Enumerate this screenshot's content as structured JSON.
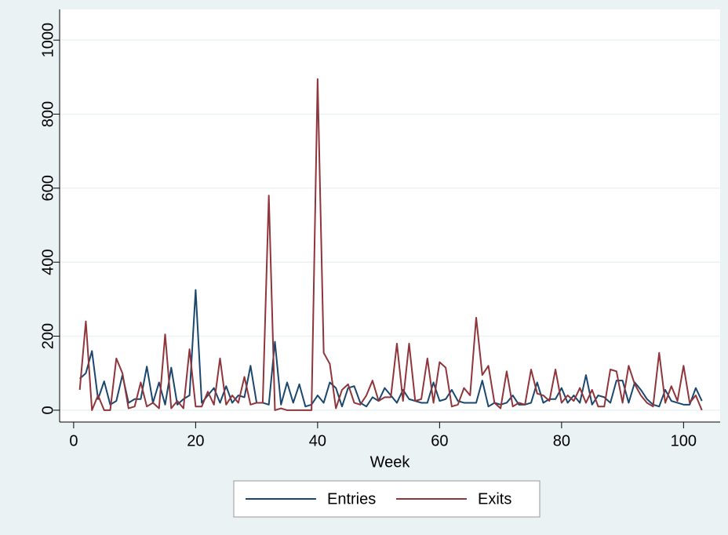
{
  "chart_data": {
    "type": "line",
    "x_label": "Week",
    "x": [
      1,
      2,
      3,
      4,
      5,
      6,
      7,
      8,
      9,
      10,
      11,
      12,
      13,
      14,
      15,
      16,
      17,
      18,
      19,
      20,
      21,
      22,
      23,
      24,
      25,
      26,
      27,
      28,
      29,
      30,
      31,
      32,
      33,
      34,
      35,
      36,
      37,
      38,
      39,
      40,
      41,
      42,
      43,
      44,
      45,
      46,
      47,
      48,
      49,
      50,
      51,
      52,
      53,
      54,
      55,
      56,
      57,
      58,
      59,
      60,
      61,
      62,
      63,
      64,
      65,
      66,
      67,
      68,
      69,
      70,
      71,
      72,
      73,
      74,
      75,
      76,
      77,
      78,
      79,
      80,
      81,
      82,
      83,
      84,
      85,
      86,
      87,
      88,
      89,
      90,
      91,
      92,
      93,
      94,
      95,
      96,
      97,
      98,
      99,
      100,
      101,
      102,
      103
    ],
    "series": [
      {
        "name": "Entries",
        "color": "#1a476f",
        "values": [
          85,
          100,
          160,
          30,
          78,
          15,
          25,
          95,
          20,
          30,
          30,
          118,
          20,
          75,
          15,
          115,
          15,
          30,
          40,
          325,
          20,
          40,
          60,
          20,
          65,
          20,
          40,
          35,
          120,
          20,
          20,
          15,
          185,
          15,
          75,
          20,
          70,
          10,
          15,
          40,
          20,
          75,
          60,
          10,
          60,
          65,
          20,
          10,
          35,
          25,
          60,
          40,
          20,
          55,
          30,
          25,
          20,
          20,
          75,
          25,
          30,
          55,
          25,
          20,
          20,
          20,
          80,
          10,
          20,
          15,
          20,
          40,
          15,
          15,
          20,
          75,
          20,
          30,
          30,
          60,
          20,
          40,
          20,
          95,
          15,
          40,
          35,
          20,
          80,
          80,
          20,
          75,
          55,
          30,
          15,
          10,
          55,
          25,
          20,
          15,
          15,
          60,
          25
        ]
      },
      {
        "name": "Exits",
        "color": "#90353b",
        "values": [
          55,
          240,
          0,
          40,
          0,
          0,
          140,
          100,
          5,
          10,
          75,
          10,
          20,
          5,
          205,
          5,
          25,
          5,
          165,
          10,
          10,
          50,
          15,
          140,
          15,
          40,
          20,
          90,
          15,
          20,
          20,
          580,
          0,
          5,
          0,
          0,
          0,
          0,
          0,
          895,
          155,
          125,
          5,
          55,
          70,
          20,
          15,
          40,
          80,
          25,
          35,
          35,
          180,
          25,
          180,
          25,
          30,
          140,
          20,
          130,
          115,
          10,
          15,
          60,
          40,
          250,
          95,
          120,
          20,
          5,
          105,
          10,
          20,
          15,
          110,
          45,
          40,
          25,
          110,
          20,
          40,
          25,
          60,
          20,
          55,
          10,
          10,
          110,
          105,
          20,
          120,
          70,
          40,
          20,
          10,
          155,
          20,
          65,
          25,
          120,
          20,
          40,
          0
        ]
      }
    ],
    "xlim": [
      -2.3,
      106
    ],
    "xticks": [
      0,
      20,
      40,
      60,
      80,
      100
    ],
    "ylim": [
      -32,
      1083
    ],
    "yticks": [
      0,
      200,
      400,
      600,
      800,
      1000
    ],
    "grid": true,
    "legend": "bottom"
  }
}
